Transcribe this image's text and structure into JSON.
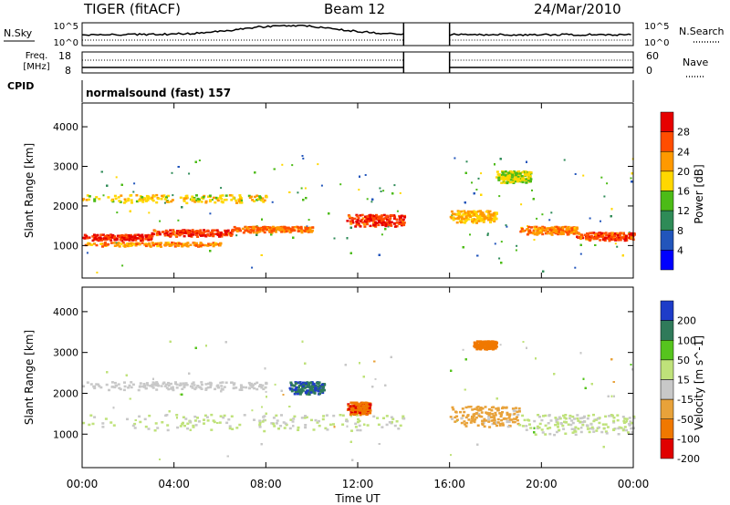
{
  "header": {
    "radar": "TIGER (fitACF)",
    "beam": "Beam 12",
    "date": "24/Mar/2010"
  },
  "noise_panel": {
    "left_label": "N.Sky",
    "right_label": "N.Search",
    "left_ticks": [
      "10^5",
      "10^0"
    ],
    "right_ticks": [
      "10^5",
      "10^0"
    ]
  },
  "freq_panel": {
    "left_label_line1": "Freq.",
    "left_label_line2": "[MHz]",
    "right_label": "Nave",
    "left_ticks": [
      "18",
      "8"
    ],
    "right_ticks": [
      "60",
      "0"
    ]
  },
  "cpid": {
    "label": "CPID",
    "value": "normalsound (fast) 157"
  },
  "chart_data": [
    {
      "type": "heatmap",
      "name": "power",
      "ylabel": "Slant Range [km]",
      "xlabel": "",
      "ylim": [
        180,
        4600
      ],
      "yticks": [
        "1000",
        "2000",
        "3000",
        "4000"
      ],
      "colorbar_label": "Power [dB]",
      "colorbar_ticks": [
        "4",
        "8",
        "12",
        "16",
        "20",
        "24",
        "28"
      ],
      "colors": [
        "#0000ff",
        "#2255bb",
        "#2e8b57",
        "#4cbb17",
        "#ffd700",
        "#ff9900",
        "#ff4d00",
        "#e60000"
      ],
      "crange": [
        0,
        32
      ],
      "data_gap_hours": [
        14.0,
        16.0
      ],
      "bands": [
        {
          "t0": 0.0,
          "t1": 3.0,
          "r0": 1150,
          "r1": 1300,
          "value": 28
        },
        {
          "t0": 3.0,
          "t1": 6.5,
          "r0": 1250,
          "r1": 1420,
          "value": 27
        },
        {
          "t0": 6.5,
          "t1": 10.0,
          "r0": 1350,
          "r1": 1500,
          "value": 24
        },
        {
          "t0": 0.0,
          "t1": 6.0,
          "r0": 1000,
          "r1": 1100,
          "value": 22
        },
        {
          "t0": 0.0,
          "t1": 8.0,
          "r0": 2100,
          "r1": 2300,
          "value": 18
        },
        {
          "t0": 11.5,
          "t1": 14.0,
          "r0": 1500,
          "r1": 1800,
          "value": 27
        },
        {
          "t0": 16.0,
          "t1": 18.0,
          "r0": 1600,
          "r1": 1900,
          "value": 20
        },
        {
          "t0": 19.0,
          "t1": 21.5,
          "r0": 1300,
          "r1": 1500,
          "value": 23
        },
        {
          "t0": 21.5,
          "t1": 24.0,
          "r0": 1150,
          "r1": 1350,
          "value": 26
        },
        {
          "t0": 18.0,
          "t1": 19.5,
          "r0": 2600,
          "r1": 2900,
          "value": 16
        }
      ]
    },
    {
      "type": "heatmap",
      "name": "velocity",
      "ylabel": "Slant Range [km]",
      "xlabel": "Time UT",
      "ylim": [
        180,
        4600
      ],
      "yticks": [
        "1000",
        "2000",
        "3000",
        "4000"
      ],
      "xticks": [
        "00:00",
        "04:00",
        "08:00",
        "12:00",
        "16:00",
        "20:00",
        "00:00"
      ],
      "xlim_hours": [
        0,
        24
      ],
      "colorbar_label": "Velocity [m s^-1]",
      "colorbar_ticks": [
        "200",
        "100",
        "50",
        "15",
        "-15",
        "-50",
        "-100",
        "-200"
      ],
      "colors": [
        "#1e3cc8",
        "#2f7a5a",
        "#56c41e",
        "#bfe27a",
        "#c8c8c8",
        "#e8a23a",
        "#f07800",
        "#e00000"
      ],
      "crange": [
        -250,
        250
      ],
      "data_gap_hours": [
        14.0,
        16.0
      ],
      "bands": [
        {
          "t0": 0.0,
          "t1": 14.0,
          "r0": 1100,
          "r1": 1500,
          "value": 0
        },
        {
          "t0": 0.0,
          "t1": 8.0,
          "r0": 2100,
          "r1": 2300,
          "value": -20
        },
        {
          "t0": 9.0,
          "t1": 10.5,
          "r0": 2000,
          "r1": 2300,
          "value": 180
        },
        {
          "t0": 11.5,
          "t1": 12.5,
          "r0": 1500,
          "r1": 1800,
          "value": -180
        },
        {
          "t0": 16.0,
          "t1": 19.0,
          "r0": 1200,
          "r1": 1700,
          "value": -80
        },
        {
          "t0": 19.0,
          "t1": 24.0,
          "r0": 1000,
          "r1": 1500,
          "value": 0
        },
        {
          "t0": 17.0,
          "t1": 18.0,
          "r0": 3100,
          "r1": 3300,
          "value": -150
        }
      ]
    }
  ]
}
